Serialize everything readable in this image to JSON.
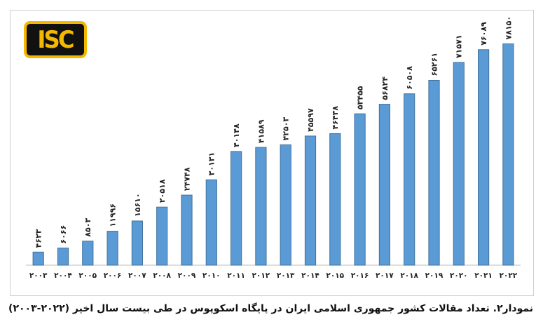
{
  "logo": {
    "text": "ISC"
  },
  "caption": "نمودار۲. تعداد مقالات کشور جمهوری اسلامی ایران در پایگاه اسکوپوس در طی بیست سال اخیر (۲۰۲۲-۲۰۰۳)",
  "colors": {
    "bar": "#5b9bd5",
    "bar_edge": "#41719c",
    "logo_bg": "#f5b800",
    "logo_fg": "#111111"
  },
  "chart_data": {
    "type": "bar",
    "title": "",
    "xlabel": "",
    "ylabel": "",
    "grid": false,
    "legend": "none",
    "categories": [
      "2003",
      "2004",
      "2005",
      "2006",
      "2007",
      "2008",
      "2009",
      "2010",
      "2011",
      "2012",
      "2013",
      "2014",
      "2015",
      "2016",
      "2017",
      "2018",
      "2019",
      "2020",
      "2021",
      "2022"
    ],
    "values": [
      4623,
      6066,
      8503,
      11996,
      15610,
      20518,
      24748,
      30131,
      40148,
      41589,
      42503,
      45597,
      46438,
      53455,
      56824,
      60508,
      65261,
      71571,
      76089,
      78150
    ],
    "value_labels": [
      "۴۶۲۳",
      "۶۰۶۶",
      "۸۵۰۳",
      "۱۱۹۹۶",
      "۱۵۶۱۰",
      "۲۰۵۱۸",
      "۲۴۷۴۸",
      "۳۰۱۳۱",
      "۴۰۱۴۸",
      "۴۱۵۸۹",
      "۴۲۵۰۳",
      "۴۵۵۹۷",
      "۴۶۴۳۸",
      "۵۳۴۵۵",
      "۵۶۸۲۴",
      "۶۰۵۰۸",
      "۶۵۲۶۱",
      "۷۱۵۷۱",
      "۷۶۰۸۹",
      "۷۸۱۵۰"
    ],
    "category_labels": [
      "۲۰۰۳",
      "۲۰۰۴",
      "۲۰۰۵",
      "۲۰۰۶",
      "۲۰۰۷",
      "۲۰۰۸",
      "۲۰۰۹",
      "۲۰۱۰",
      "۲۰۱۱",
      "۲۰۱۲",
      "۲۰۱۳",
      "۲۰۱۴",
      "۲۰۱۵",
      "۲۰۱۶",
      "۲۰۱۷",
      "۲۰۱۸",
      "۲۰۱۹",
      "۲۰۲۰",
      "۲۰۲۱",
      "۲۰۲۲"
    ],
    "ylim": [
      0,
      80000
    ]
  }
}
